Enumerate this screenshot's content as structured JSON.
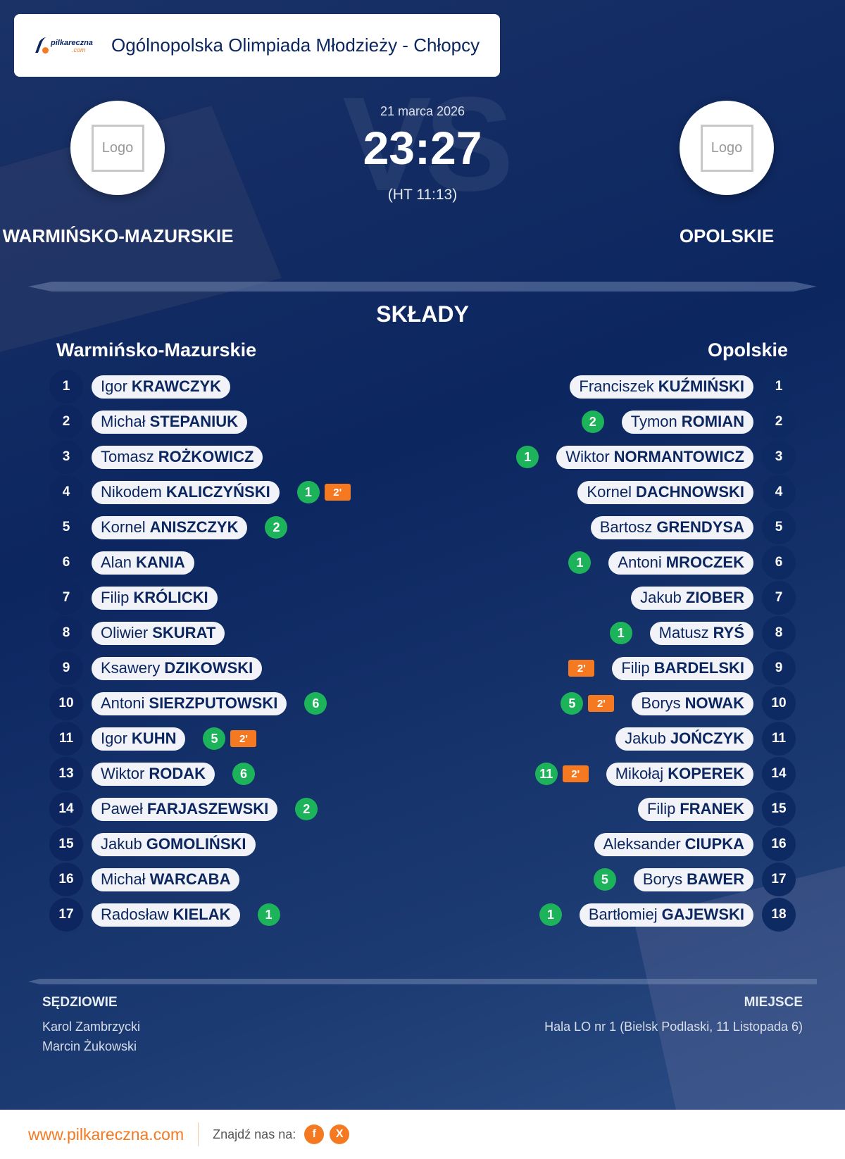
{
  "header": {
    "brand": {
      "name": "pilkareczna",
      "suffix": ".com"
    },
    "title": "Ogólnopolska Olimpiada Młodzieży - Chłopcy"
  },
  "match": {
    "date": "21 marca 2026",
    "score": "23:27",
    "halftime": "(HT 11:13)",
    "vs_watermark": "VS",
    "home": {
      "name": "WARMIŃSKO-MAZURSKIE",
      "logo_placeholder": "Logo"
    },
    "away": {
      "name": "OPOLSKIE",
      "logo_placeholder": "Logo"
    }
  },
  "lineups": {
    "title": "SKŁADY",
    "home": {
      "heading": "Warmińsko-Mazurskie",
      "players": [
        {
          "number": "1",
          "first": "Igor",
          "last": "KRAWCZYK",
          "goals": "",
          "suspension": ""
        },
        {
          "number": "2",
          "first": "Michał",
          "last": "STEPANIUK",
          "goals": "",
          "suspension": ""
        },
        {
          "number": "3",
          "first": "Tomasz",
          "last": "ROŻKOWICZ",
          "goals": "",
          "suspension": ""
        },
        {
          "number": "4",
          "first": "Nikodem",
          "last": "KALICZYŃSKI",
          "goals": "1",
          "suspension": "2'"
        },
        {
          "number": "5",
          "first": "Kornel",
          "last": "ANISZCZYK",
          "goals": "2",
          "suspension": ""
        },
        {
          "number": "6",
          "first": "Alan",
          "last": "KANIA",
          "goals": "",
          "suspension": ""
        },
        {
          "number": "7",
          "first": "Filip",
          "last": "KRÓLICKI",
          "goals": "",
          "suspension": ""
        },
        {
          "number": "8",
          "first": "Oliwier",
          "last": "SKURAT",
          "goals": "",
          "suspension": ""
        },
        {
          "number": "9",
          "first": "Ksawery",
          "last": "DZIKOWSKI",
          "goals": "",
          "suspension": ""
        },
        {
          "number": "10",
          "first": "Antoni",
          "last": "SIERZPUTOWSKI",
          "goals": "6",
          "suspension": ""
        },
        {
          "number": "11",
          "first": "Igor",
          "last": "KUHN",
          "goals": "5",
          "suspension": "2'"
        },
        {
          "number": "13",
          "first": "Wiktor",
          "last": "RODAK",
          "goals": "6",
          "suspension": ""
        },
        {
          "number": "14",
          "first": "Paweł",
          "last": "FARJASZEWSKI",
          "goals": "2",
          "suspension": ""
        },
        {
          "number": "15",
          "first": "Jakub",
          "last": "GOMOLIŃSKI",
          "goals": "",
          "suspension": ""
        },
        {
          "number": "16",
          "first": "Michał",
          "last": "WARCABA",
          "goals": "",
          "suspension": ""
        },
        {
          "number": "17",
          "first": "Radosław",
          "last": "KIELAK",
          "goals": "1",
          "suspension": ""
        }
      ]
    },
    "away": {
      "heading": "Opolskie",
      "players": [
        {
          "number": "1",
          "first": "Franciszek",
          "last": "KUŹMIŃSKI",
          "goals": "",
          "suspension": ""
        },
        {
          "number": "2",
          "first": "Tymon",
          "last": "ROMIAN",
          "goals": "2",
          "suspension": ""
        },
        {
          "number": "3",
          "first": "Wiktor",
          "last": "NORMANTOWICZ",
          "goals": "1",
          "suspension": ""
        },
        {
          "number": "4",
          "first": "Kornel",
          "last": "DACHNOWSKI",
          "goals": "",
          "suspension": ""
        },
        {
          "number": "5",
          "first": "Bartosz",
          "last": "GRENDYSA",
          "goals": "",
          "suspension": ""
        },
        {
          "number": "6",
          "first": "Antoni",
          "last": "MROCZEK",
          "goals": "1",
          "suspension": ""
        },
        {
          "number": "7",
          "first": "Jakub",
          "last": "ZIOBER",
          "goals": "",
          "suspension": ""
        },
        {
          "number": "8",
          "first": "Matusz",
          "last": "RYŚ",
          "goals": "1",
          "suspension": ""
        },
        {
          "number": "9",
          "first": "Filip",
          "last": "BARDELSKI",
          "goals": "",
          "suspension": "2'"
        },
        {
          "number": "10",
          "first": "Borys",
          "last": "NOWAK",
          "goals": "5",
          "suspension": "2'"
        },
        {
          "number": "11",
          "first": "Jakub",
          "last": "JOŃCZYK",
          "goals": "",
          "suspension": ""
        },
        {
          "number": "14",
          "first": "Mikołaj",
          "last": "KOPEREK",
          "goals": "11",
          "suspension": "2'"
        },
        {
          "number": "15",
          "first": "Filip",
          "last": "FRANEK",
          "goals": "",
          "suspension": ""
        },
        {
          "number": "16",
          "first": "Aleksander",
          "last": "CIUPKA",
          "goals": "",
          "suspension": ""
        },
        {
          "number": "17",
          "first": "Borys",
          "last": "BAWER",
          "goals": "5",
          "suspension": ""
        },
        {
          "number": "18",
          "first": "Bartłomiej",
          "last": "GAJEWSKI",
          "goals": "1",
          "suspension": ""
        }
      ]
    }
  },
  "officials": {
    "label": "SĘDZIOWIE",
    "names": [
      "Karol Zambrzycki",
      "Marcin Żukowski"
    ]
  },
  "venue": {
    "label": "MIEJSCE",
    "text": "Hala LO nr 1 (Bielsk Podlaski, 11 Listopada 6)"
  },
  "footer": {
    "url": "www.pilkareczna.com",
    "find_us": "Znajdź nas na:",
    "social": [
      {
        "name": "facebook",
        "glyph": "f"
      },
      {
        "name": "x",
        "glyph": "X"
      }
    ]
  },
  "colors": {
    "navy": "#0c2660",
    "goal_green": "#1db35a",
    "suspension_orange": "#f47920",
    "pill_bg": "#f1f3f8"
  }
}
